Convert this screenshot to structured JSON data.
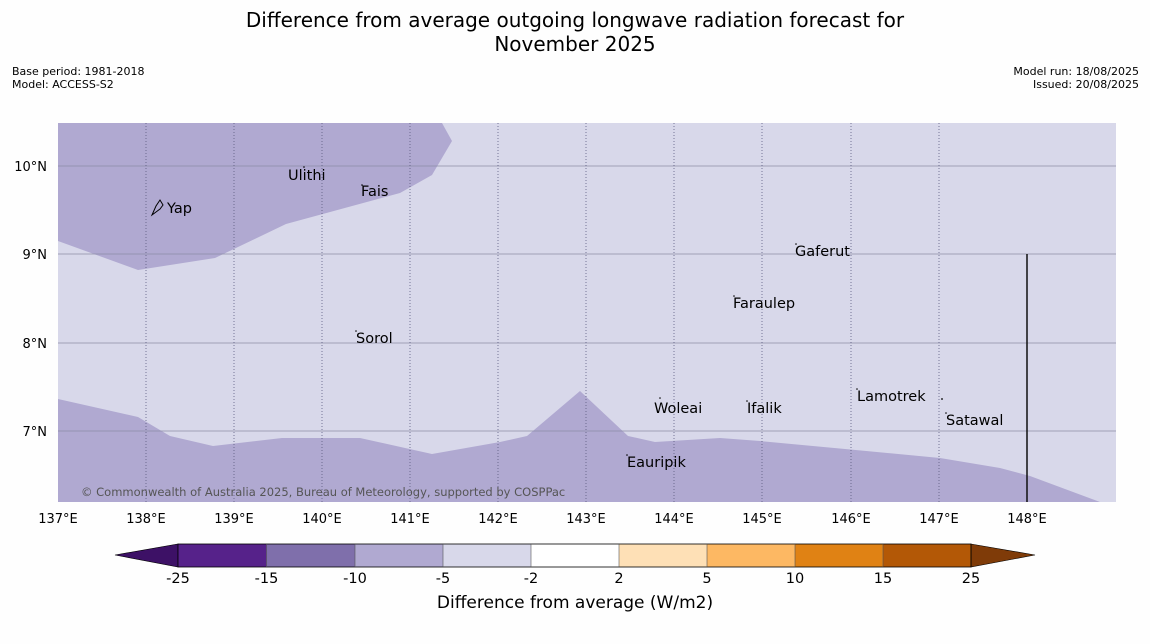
{
  "title_line1": "Difference from average outgoing longwave radiation forecast for",
  "title_line2": "November 2025",
  "base_period": "Base period: 1981-2018",
  "model": "Model: ACCESS-S2",
  "model_run": "Model run: 18/08/2025",
  "issued": "Issued: 20/08/2025",
  "copyright": "© Commonwealth of Australia 2025, Bureau of Meteorology, supported by COSPPac",
  "colors": {
    "background_band": "#d8d8ea",
    "anomaly_band": "#b0a9d1",
    "gridline": "#8c8ca6"
  },
  "map": {
    "lon_labels": [
      "137°E",
      "138°E",
      "139°E",
      "140°E",
      "141°E",
      "142°E",
      "143°E",
      "144°E",
      "145°E",
      "146°E",
      "147°E",
      "148°E"
    ],
    "lat_labels": [
      "10°N",
      "9°N",
      "8°N",
      "7°N"
    ],
    "places": [
      {
        "name": "Yap"
      },
      {
        "name": "Ulithi"
      },
      {
        "name": "Fais"
      },
      {
        "name": "Gaferut"
      },
      {
        "name": "Faraulep"
      },
      {
        "name": "Sorol"
      },
      {
        "name": "Lamotrek"
      },
      {
        "name": "Woleai"
      },
      {
        "name": "Ifalik"
      },
      {
        "name": "Satawal"
      },
      {
        "name": "Eauripik"
      }
    ]
  },
  "colorbar": {
    "title": "Difference from average (W/m2)",
    "ticks": [
      "-25",
      "-15",
      "-10",
      "-5",
      "-2",
      "2",
      "5",
      "10",
      "15",
      "25"
    ],
    "colors": [
      "#3d1166",
      "#56228a",
      "#7f6fab",
      "#b0a9d1",
      "#d8d8ea",
      "#ffffff",
      "#fee0b6",
      "#fdb863",
      "#e08214",
      "#b35806",
      "#7f3b08"
    ]
  }
}
